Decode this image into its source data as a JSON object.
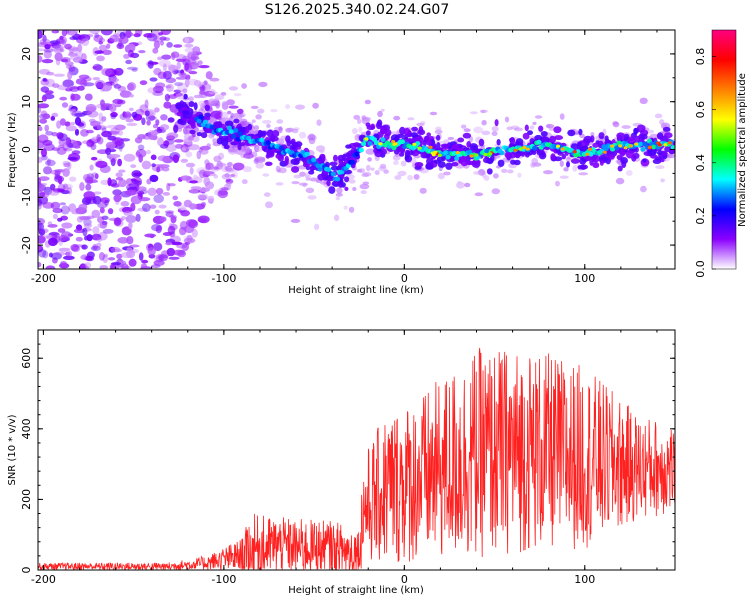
{
  "title": "S126.2025.340.02.24.G07",
  "chart_data": [
    {
      "type": "heatmap",
      "name": "spectrogram",
      "xlabel": "Height of straight line (km)",
      "ylabel": "Frequency (Hz)",
      "xlim": [
        -203,
        150
      ],
      "ylim": [
        -25,
        25
      ],
      "x_ticks": [
        -200,
        -100,
        0,
        100
      ],
      "y_ticks": [
        -20,
        -10,
        0,
        10,
        20
      ],
      "ridge": [
        {
          "x": -120,
          "y": 8
        },
        {
          "x": -105,
          "y": 4
        },
        {
          "x": -90,
          "y": 3
        },
        {
          "x": -75,
          "y": 1
        },
        {
          "x": -60,
          "y": -1
        },
        {
          "x": -48,
          "y": -3
        },
        {
          "x": -37,
          "y": -6
        },
        {
          "x": -30,
          "y": -3
        },
        {
          "x": -22,
          "y": 2
        },
        {
          "x": -10,
          "y": 1
        },
        {
          "x": 5,
          "y": 1
        },
        {
          "x": 20,
          "y": -1
        },
        {
          "x": 40,
          "y": -1
        },
        {
          "x": 60,
          "y": 0
        },
        {
          "x": 80,
          "y": 1
        },
        {
          "x": 100,
          "y": -1
        },
        {
          "x": 120,
          "y": 1
        },
        {
          "x": 150,
          "y": 1
        }
      ],
      "colorbar": {
        "label": "Normalized spectral amplitude",
        "range": [
          0.0,
          0.9
        ],
        "ticks": [
          "0.0",
          "0.2",
          "0.4",
          "0.6",
          "0.8"
        ],
        "colors": [
          "#ffffff",
          "#8a00ff",
          "#0000ff",
          "#00ffff",
          "#00ff00",
          "#ffff00",
          "#ff8000",
          "#ff0000",
          "#ff0080"
        ]
      }
    },
    {
      "type": "line",
      "name": "snr",
      "xlabel": "Height of straight line (km)",
      "ylabel": "SNR (10 * v/v)",
      "xlim": [
        -203,
        150
      ],
      "ylim": [
        0,
        680
      ],
      "x_ticks": [
        -200,
        -100,
        0,
        100
      ],
      "y_ticks": [
        0,
        200,
        400,
        600
      ],
      "color": "#ff2020",
      "envelope": [
        {
          "x": -203,
          "base": 10,
          "amp": 10
        },
        {
          "x": -130,
          "base": 10,
          "amp": 12
        },
        {
          "x": -110,
          "base": 20,
          "amp": 20
        },
        {
          "x": -90,
          "base": 40,
          "amp": 50
        },
        {
          "x": -85,
          "base": 60,
          "amp": 100
        },
        {
          "x": -70,
          "base": 70,
          "amp": 80
        },
        {
          "x": -40,
          "base": 60,
          "amp": 80
        },
        {
          "x": -25,
          "base": 50,
          "amp": 70
        },
        {
          "x": -23,
          "base": 170,
          "amp": 150
        },
        {
          "x": -10,
          "base": 230,
          "amp": 220
        },
        {
          "x": 10,
          "base": 260,
          "amp": 240
        },
        {
          "x": 40,
          "base": 330,
          "amp": 300
        },
        {
          "x": 70,
          "base": 340,
          "amp": 290
        },
        {
          "x": 100,
          "base": 320,
          "amp": 260
        },
        {
          "x": 130,
          "base": 290,
          "amp": 150
        },
        {
          "x": 150,
          "base": 290,
          "amp": 130
        }
      ]
    }
  ]
}
